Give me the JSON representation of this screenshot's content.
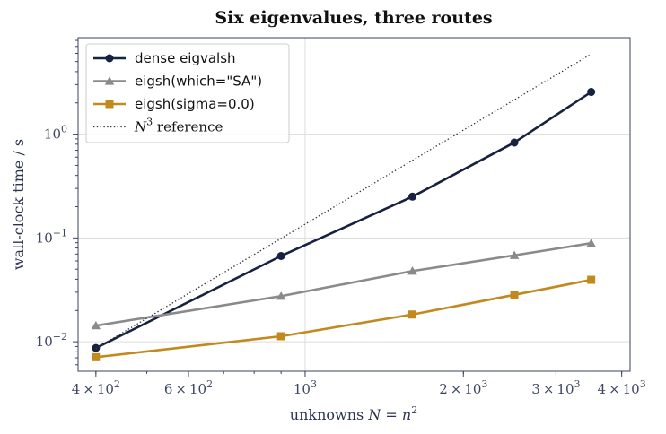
{
  "chart_data": {
    "type": "line",
    "title": "Six eigenvalues, three routes",
    "xlabel": "unknowns  N = n²",
    "ylabel": "wall-clock time / s",
    "xscale": "log",
    "yscale": "log",
    "xlim": [
      370,
      4150
    ],
    "ylim": [
      0.0052,
      8.5
    ],
    "grid": true,
    "legend_position": "top-left",
    "x_major_ticks": [
      {
        "value": 400,
        "mantissa": "4",
        "exponent": "2"
      },
      {
        "value": 600,
        "mantissa": "6",
        "exponent": "2"
      },
      {
        "value": 1000,
        "mantissa": "",
        "exponent": "3"
      },
      {
        "value": 2000,
        "mantissa": "2",
        "exponent": "3"
      },
      {
        "value": 3000,
        "mantissa": "3",
        "exponent": "3"
      },
      {
        "value": 4000,
        "mantissa": "4",
        "exponent": "3"
      }
    ],
    "y_major_ticks": [
      {
        "value": 0.01,
        "exponent": "−2"
      },
      {
        "value": 0.1,
        "exponent": "−1"
      },
      {
        "value": 1,
        "exponent": "0"
      }
    ],
    "x": [
      400,
      900,
      1600,
      2500,
      3500
    ],
    "series": [
      {
        "name": "dense eigvalsh",
        "values": [
          0.0087,
          0.067,
          0.25,
          0.83,
          2.55
        ],
        "color": "#16223f",
        "marker": "circle",
        "style": "solid"
      },
      {
        "name": "eigsh(which=\"SA\")",
        "values": [
          0.0143,
          0.0275,
          0.048,
          0.068,
          0.089
        ],
        "color": "#8a8a8a",
        "marker": "triangle",
        "style": "solid"
      },
      {
        "name": "eigsh(sigma=0.0)",
        "values": [
          0.0071,
          0.0113,
          0.0183,
          0.0283,
          0.0395
        ],
        "color": "#c28a1e",
        "marker": "square",
        "style": "solid"
      },
      {
        "name": "N³ reference",
        "x": [
          400,
          3500
        ],
        "values": [
          0.0086,
          5.9
        ],
        "color": "#333333",
        "marker": "none",
        "style": "dotted"
      }
    ]
  }
}
